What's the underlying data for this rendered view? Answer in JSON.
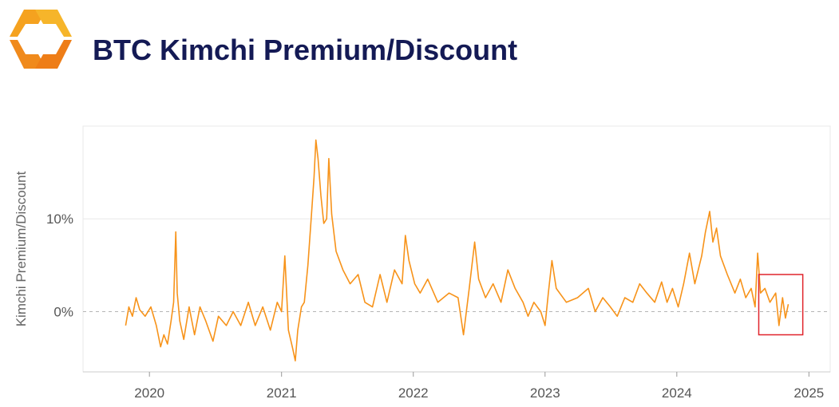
{
  "header": {
    "title": "BTC Kimchi Premium/Discount",
    "logo_icon": "brand-logo-icon"
  },
  "colors": {
    "series": "#f7931a",
    "title": "#141a55",
    "highlight_box": "#e0242b",
    "zero_line": "#b5b5b5",
    "grid": "#e8e8e8"
  },
  "chart_data": {
    "type": "line",
    "title": "",
    "xlabel": "",
    "ylabel": "Kimchi Premium/Discount",
    "x_ticks": [
      "2020",
      "2021",
      "2022",
      "2023",
      "2024",
      "2025"
    ],
    "y_ticks": [
      "0%",
      "10%"
    ],
    "xlim": [
      "2019-07-01",
      "2025-03-01"
    ],
    "ylim": [
      -6.5,
      20
    ],
    "grid": "horizontal",
    "zero_line": "dashed",
    "highlight_box": {
      "x": [
        "2024-08-15",
        "2024-12-15"
      ],
      "y": [
        -2.5,
        4
      ]
    },
    "series": [
      {
        "values": [
          [
            "2019-10-27",
            -1.5
          ],
          [
            "2019-11-05",
            0.5
          ],
          [
            "2019-11-15",
            -0.5
          ],
          [
            "2019-11-25",
            1.5
          ],
          [
            "2019-12-05",
            0.2
          ],
          [
            "2019-12-20",
            -0.5
          ],
          [
            "2020-01-05",
            0.5
          ],
          [
            "2020-01-20",
            -1.5
          ],
          [
            "2020-02-01",
            -3.8
          ],
          [
            "2020-02-10",
            -2.5
          ],
          [
            "2020-02-20",
            -3.5
          ],
          [
            "2020-03-01",
            -1.0
          ],
          [
            "2020-03-08",
            1.0
          ],
          [
            "2020-03-14",
            8.6
          ],
          [
            "2020-03-18",
            2.0
          ],
          [
            "2020-03-25",
            -1.0
          ],
          [
            "2020-04-05",
            -3.0
          ],
          [
            "2020-04-20",
            0.5
          ],
          [
            "2020-05-05",
            -2.5
          ],
          [
            "2020-05-20",
            0.5
          ],
          [
            "2020-06-05",
            -1.0
          ],
          [
            "2020-06-25",
            -3.2
          ],
          [
            "2020-07-10",
            -0.5
          ],
          [
            "2020-08-01",
            -1.5
          ],
          [
            "2020-08-20",
            0.0
          ],
          [
            "2020-09-10",
            -1.5
          ],
          [
            "2020-10-01",
            1.0
          ],
          [
            "2020-10-20",
            -1.5
          ],
          [
            "2020-11-10",
            0.5
          ],
          [
            "2020-12-01",
            -2.0
          ],
          [
            "2020-12-20",
            1.0
          ],
          [
            "2021-01-01",
            0.0
          ],
          [
            "2021-01-10",
            6.0
          ],
          [
            "2021-01-20",
            -2.0
          ],
          [
            "2021-02-01",
            -4.0
          ],
          [
            "2021-02-08",
            -5.3
          ],
          [
            "2021-02-15",
            -2.0
          ],
          [
            "2021-02-25",
            0.5
          ],
          [
            "2021-03-05",
            1.0
          ],
          [
            "2021-03-15",
            5.0
          ],
          [
            "2021-03-25",
            10.5
          ],
          [
            "2021-04-01",
            14.5
          ],
          [
            "2021-04-06",
            18.5
          ],
          [
            "2021-04-12",
            16.5
          ],
          [
            "2021-04-20",
            12.5
          ],
          [
            "2021-04-28",
            9.5
          ],
          [
            "2021-05-06",
            10.0
          ],
          [
            "2021-05-12",
            16.5
          ],
          [
            "2021-05-20",
            10.5
          ],
          [
            "2021-06-01",
            6.5
          ],
          [
            "2021-06-20",
            4.5
          ],
          [
            "2021-07-10",
            3.0
          ],
          [
            "2021-08-01",
            4.0
          ],
          [
            "2021-08-20",
            1.0
          ],
          [
            "2021-09-10",
            0.5
          ],
          [
            "2021-10-01",
            4.0
          ],
          [
            "2021-10-20",
            1.0
          ],
          [
            "2021-11-10",
            4.5
          ],
          [
            "2021-12-01",
            3.0
          ],
          [
            "2021-12-10",
            8.2
          ],
          [
            "2021-12-20",
            5.5
          ],
          [
            "2022-01-05",
            3.0
          ],
          [
            "2022-01-20",
            2.0
          ],
          [
            "2022-02-10",
            3.5
          ],
          [
            "2022-03-10",
            1.0
          ],
          [
            "2022-04-10",
            2.0
          ],
          [
            "2022-05-05",
            1.5
          ],
          [
            "2022-05-20",
            -2.5
          ],
          [
            "2022-06-05",
            2.5
          ],
          [
            "2022-06-20",
            7.5
          ],
          [
            "2022-07-01",
            3.5
          ],
          [
            "2022-07-20",
            1.5
          ],
          [
            "2022-08-10",
            3.0
          ],
          [
            "2022-09-01",
            1.0
          ],
          [
            "2022-09-20",
            4.5
          ],
          [
            "2022-10-10",
            2.5
          ],
          [
            "2022-11-01",
            1.0
          ],
          [
            "2022-11-15",
            -0.5
          ],
          [
            "2022-12-01",
            1.0
          ],
          [
            "2022-12-20",
            0.0
          ],
          [
            "2023-01-01",
            -1.5
          ],
          [
            "2023-01-10",
            2.0
          ],
          [
            "2023-01-20",
            5.5
          ],
          [
            "2023-02-01",
            2.5
          ],
          [
            "2023-03-01",
            1.0
          ],
          [
            "2023-04-01",
            1.5
          ],
          [
            "2023-05-01",
            2.5
          ],
          [
            "2023-05-20",
            0.0
          ],
          [
            "2023-06-10",
            1.5
          ],
          [
            "2023-07-01",
            0.5
          ],
          [
            "2023-07-20",
            -0.5
          ],
          [
            "2023-08-10",
            1.5
          ],
          [
            "2023-09-01",
            1.0
          ],
          [
            "2023-09-20",
            3.0
          ],
          [
            "2023-10-10",
            2.0
          ],
          [
            "2023-11-01",
            1.0
          ],
          [
            "2023-11-20",
            3.2
          ],
          [
            "2023-12-05",
            1.0
          ],
          [
            "2023-12-20",
            2.5
          ],
          [
            "2024-01-05",
            0.5
          ],
          [
            "2024-01-20",
            3.0
          ],
          [
            "2024-02-05",
            6.3
          ],
          [
            "2024-02-20",
            3.0
          ],
          [
            "2024-03-10",
            6.0
          ],
          [
            "2024-03-20",
            8.5
          ],
          [
            "2024-04-01",
            10.8
          ],
          [
            "2024-04-10",
            7.5
          ],
          [
            "2024-04-20",
            9.0
          ],
          [
            "2024-05-01",
            6.0
          ],
          [
            "2024-05-20",
            4.0
          ],
          [
            "2024-06-10",
            2.0
          ],
          [
            "2024-06-25",
            3.5
          ],
          [
            "2024-07-10",
            1.5
          ],
          [
            "2024-07-25",
            2.5
          ],
          [
            "2024-08-05",
            0.5
          ],
          [
            "2024-08-12",
            6.3
          ],
          [
            "2024-08-20",
            2.0
          ],
          [
            "2024-09-01",
            2.5
          ],
          [
            "2024-09-15",
            1.0
          ],
          [
            "2024-10-01",
            2.0
          ],
          [
            "2024-10-10",
            -1.5
          ],
          [
            "2024-10-20",
            1.5
          ],
          [
            "2024-10-28",
            -0.7
          ],
          [
            "2024-11-05",
            0.8
          ]
        ]
      }
    ]
  }
}
